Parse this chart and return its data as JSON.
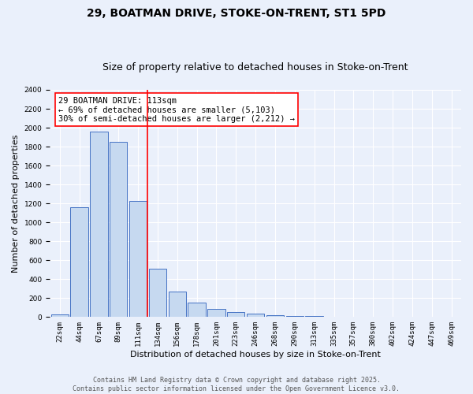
{
  "title_line1": "29, BOATMAN DRIVE, STOKE-ON-TRENT, ST1 5PD",
  "title_line2": "Size of property relative to detached houses in Stoke-on-Trent",
  "xlabel": "Distribution of detached houses by size in Stoke-on-Trent",
  "ylabel": "Number of detached properties",
  "bar_labels": [
    "22sqm",
    "44sqm",
    "67sqm",
    "89sqm",
    "111sqm",
    "134sqm",
    "156sqm",
    "178sqm",
    "201sqm",
    "223sqm",
    "246sqm",
    "268sqm",
    "290sqm",
    "313sqm",
    "335sqm",
    "357sqm",
    "380sqm",
    "402sqm",
    "424sqm",
    "447sqm",
    "469sqm"
  ],
  "bar_values": [
    25,
    1160,
    1960,
    1850,
    1230,
    510,
    270,
    155,
    90,
    50,
    40,
    20,
    15,
    10,
    5,
    3,
    2,
    2,
    1,
    1,
    1
  ],
  "bar_color": "#c6d9f0",
  "bar_edge_color": "#4472c4",
  "background_color": "#eaf0fb",
  "grid_color": "#ffffff",
  "vline_color": "red",
  "vline_x": 4.5,
  "annotation_text": "29 BOATMAN DRIVE: 113sqm\n← 69% of detached houses are smaller (5,103)\n30% of semi-detached houses are larger (2,212) →",
  "annotation_box_color": "white",
  "annotation_box_edge_color": "red",
  "ylim": [
    0,
    2400
  ],
  "yticks": [
    0,
    200,
    400,
    600,
    800,
    1000,
    1200,
    1400,
    1600,
    1800,
    2000,
    2200,
    2400
  ],
  "footer_line1": "Contains HM Land Registry data © Crown copyright and database right 2025.",
  "footer_line2": "Contains public sector information licensed under the Open Government Licence v3.0.",
  "title_fontsize": 10,
  "subtitle_fontsize": 9,
  "axis_label_fontsize": 8,
  "tick_fontsize": 6.5,
  "annotation_fontsize": 7.5,
  "footer_fontsize": 6
}
